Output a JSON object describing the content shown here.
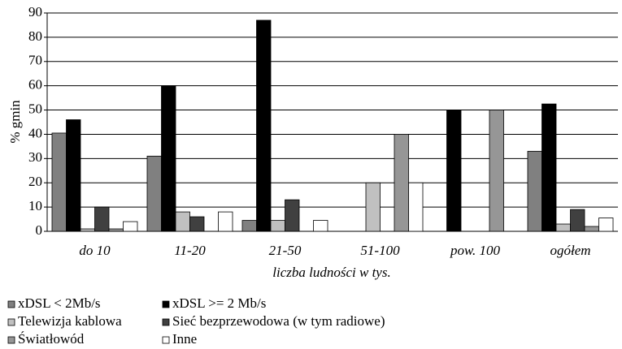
{
  "chart_data": {
    "type": "bar",
    "x_label": "liczba ludności w tys.",
    "y_label": "% gmin",
    "categories": [
      "do 10",
      "11-20",
      "21-50",
      "51-100",
      "pow. 100",
      "ogółem"
    ],
    "series": [
      {
        "name": "xDSL < 2Mb/s",
        "color": "#808080",
        "values": [
          40.5,
          31,
          4.5,
          0,
          0,
          33
        ]
      },
      {
        "name": "xDSL >= 2 Mb/s",
        "color": "#000000",
        "values": [
          46,
          60,
          87,
          0,
          50,
          52.5
        ]
      },
      {
        "name": "Telewizja kablowa",
        "color": "#c0c0c0",
        "values": [
          1,
          8,
          4.5,
          20,
          0,
          3
        ]
      },
      {
        "name": "Sieć bezprzewodowa (w tym radiowe)",
        "color": "#404040",
        "values": [
          10,
          6,
          13,
          0,
          0,
          9
        ]
      },
      {
        "name": "Światłowód",
        "color": "#969696",
        "values": [
          1,
          0,
          0,
          40,
          50,
          2
        ]
      },
      {
        "name": "Inne",
        "color": "#ffffff",
        "values": [
          4,
          8,
          4.5,
          20,
          0,
          5.5
        ]
      }
    ],
    "ylim": [
      0,
      90
    ],
    "yticks": [
      0,
      10,
      20,
      30,
      40,
      50,
      60,
      70,
      80,
      90
    ],
    "grid": true
  }
}
